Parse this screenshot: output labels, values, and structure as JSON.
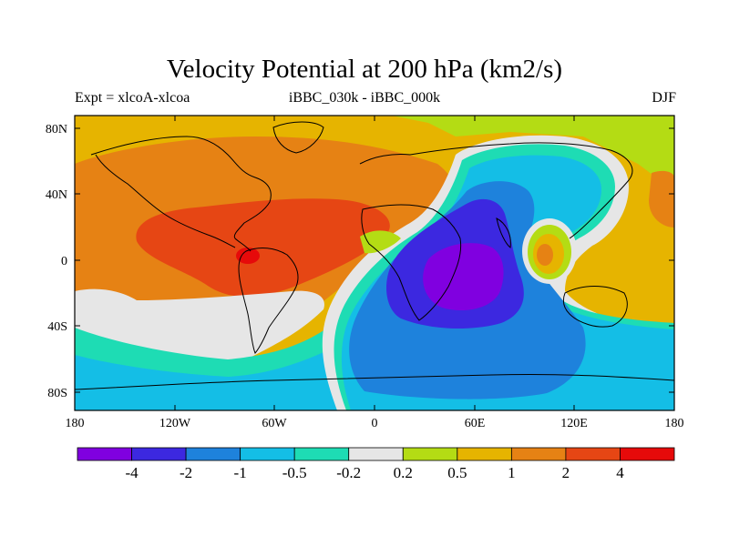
{
  "title": "Velocity Potential at 200 hPa (km2/s)",
  "subtitle_left": "Expt = xlcoA-xlcoa",
  "subtitle_center": "iBBC_030k - iBBC_000k",
  "subtitle_right": "DJF",
  "lat_labels": [
    "80N",
    "40N",
    "0",
    "40S",
    "80S"
  ],
  "lon_labels": [
    "180",
    "120W",
    "60W",
    "0",
    "60E",
    "120E",
    "180"
  ],
  "colorbar": {
    "colors": [
      "#8000e0",
      "#3c28e0",
      "#1e82dc",
      "#14bee6",
      "#1edcb4",
      "#e6e6e6",
      "#b4dc14",
      "#e6b400",
      "#e68214",
      "#e64614",
      "#e60a0a"
    ],
    "labels": [
      "-4",
      "-2",
      "-1",
      "-0.5",
      "-0.2",
      "0.2",
      "0.5",
      "1",
      "2",
      "4"
    ]
  },
  "palette": {
    "purple": "#8000e0",
    "blue": "#3c28e0",
    "midblue": "#1e82dc",
    "cyan": "#14bee6",
    "teal": "#1edcb4",
    "grey": "#e6e6e6",
    "yellowgreen": "#b4dc14",
    "gold": "#e6b400",
    "orange": "#e68214",
    "redorange": "#e64614",
    "red": "#e60a0a"
  }
}
